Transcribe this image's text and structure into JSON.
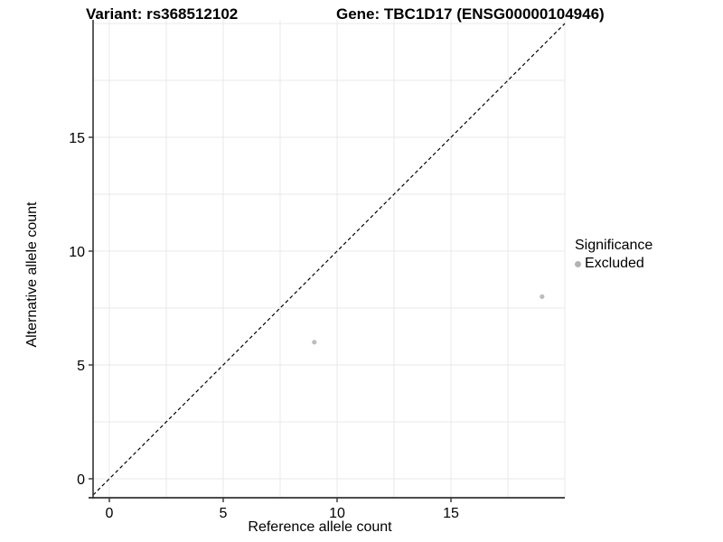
{
  "chart_data": {
    "type": "scatter",
    "title_variant": "Variant: rs368512102",
    "title_gene": "Gene: TBC1D17 (ENSG00000104946)",
    "xlabel": "Reference allele count",
    "ylabel": "Alternative allele count",
    "xlim": [
      -0.7,
      20
    ],
    "ylim": [
      -0.85,
      20.2
    ],
    "xticks": [
      0,
      5,
      10,
      15
    ],
    "yticks": [
      0,
      5,
      10,
      15
    ],
    "grid": true,
    "grid_step": 2.5,
    "identity_line": {
      "style": "dashed",
      "equation": "y = x"
    },
    "series": [
      {
        "name": "Excluded",
        "color": "#bdbdbd",
        "points": [
          {
            "x": 9,
            "y": 6
          },
          {
            "x": 19,
            "y": 8
          }
        ]
      }
    ],
    "legend": {
      "title": "Significance",
      "position": "right",
      "items": [
        {
          "label": "Excluded",
          "color": "#b3b3b3"
        }
      ]
    },
    "colors": {
      "grid": "#e9e9e9",
      "axis": "#333333",
      "tick_text": "#000000",
      "identity_line": "#000000",
      "background": "#ffffff"
    }
  }
}
